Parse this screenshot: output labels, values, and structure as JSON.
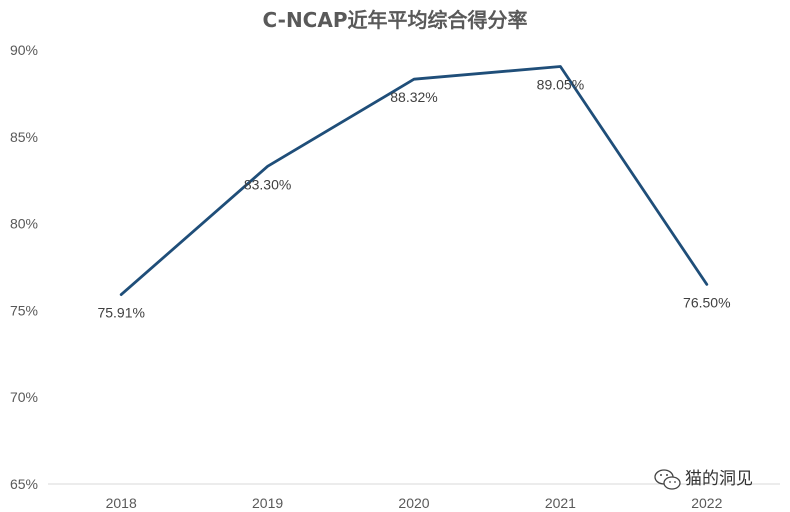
{
  "chart_data": {
    "type": "line",
    "title": "C-NCAP近年平均综合得分率",
    "categories": [
      "2018",
      "2019",
      "2020",
      "2021",
      "2022"
    ],
    "series": [
      {
        "values": [
          75.91,
          83.3,
          88.32,
          89.05,
          76.5
        ],
        "labels": [
          "75.91%",
          "83.30%",
          "88.32%",
          "89.05%",
          "76.50%"
        ],
        "color": "#1f4e79"
      }
    ],
    "ylim": [
      65,
      90
    ],
    "yticks": [
      65,
      70,
      75,
      80,
      85,
      90
    ],
    "ytick_labels": [
      "65%",
      "70%",
      "75%",
      "80%",
      "85%",
      "90%"
    ],
    "grid": false,
    "legend": "none"
  },
  "watermark": {
    "text": "猫的洞见",
    "icon": "wechat-icon"
  }
}
